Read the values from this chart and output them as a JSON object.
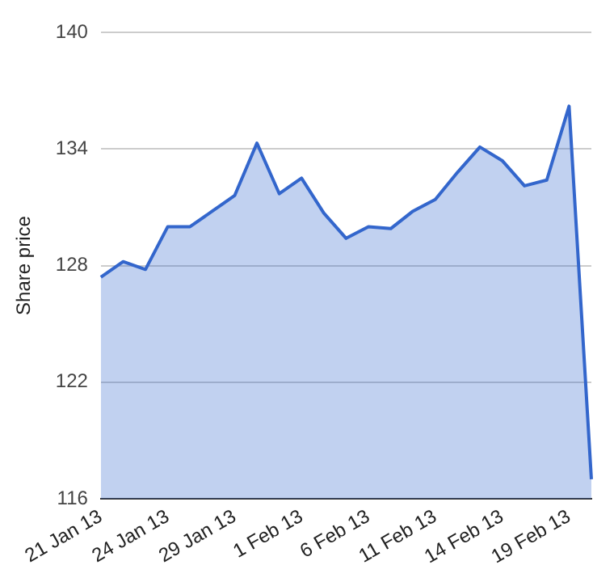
{
  "chart_data": {
    "type": "area",
    "ylabel": "Share price",
    "categories": [
      "21 Jan 13",
      null,
      null,
      "24 Jan 13",
      null,
      null,
      "29 Jan 13",
      null,
      null,
      "1 Feb 13",
      null,
      null,
      "6 Feb 13",
      null,
      null,
      "11 Feb 13",
      null,
      null,
      "14 Feb 13",
      null,
      null,
      "19 Feb 13",
      null
    ],
    "series": [
      {
        "color": "#3366cc",
        "values": [
          127.4,
          128.2,
          127.8,
          130.0,
          130.0,
          130.8,
          131.6,
          134.3,
          131.7,
          132.5,
          130.7,
          129.4,
          130.0,
          129.9,
          130.8,
          131.4,
          132.8,
          134.1,
          133.4,
          132.1,
          132.4,
          136.2,
          117.0
        ]
      }
    ],
    "ylim": [
      116,
      140
    ],
    "yticks": [
      116,
      122,
      128,
      134,
      140
    ],
    "grid": "y",
    "legend": false,
    "marker": "none",
    "line_style": "solid"
  }
}
